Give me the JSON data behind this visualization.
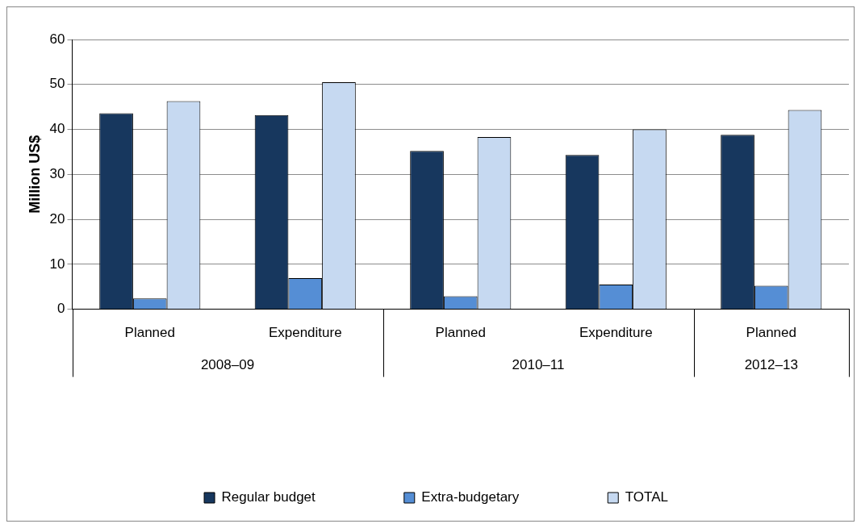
{
  "chart_data": {
    "type": "bar",
    "ylabel": "Million US$",
    "categories": [
      "Planned",
      "Expenditure",
      "Planned",
      "Expenditure",
      "Planned"
    ],
    "annotations": [
      "2008–09",
      "2010–11",
      "2012–13"
    ],
    "series": [
      {
        "name": "Regular budget",
        "color": "#17375e",
        "values": [
          43.6,
          43.2,
          35.2,
          34.3,
          38.8
        ]
      },
      {
        "name": "Extra-budgetary",
        "color": "#558ed5",
        "values": [
          2.4,
          6.9,
          2.9,
          5.5,
          5.2
        ]
      },
      {
        "name": "TOTAL",
        "color": "#c6d9f1",
        "values": [
          46.3,
          50.5,
          38.3,
          40.0,
          44.3
        ]
      }
    ],
    "ylim": [
      0,
      60
    ],
    "yticks": [
      0,
      10,
      20,
      30,
      40,
      50,
      60
    ],
    "grid": "y",
    "legend": "bottom"
  }
}
